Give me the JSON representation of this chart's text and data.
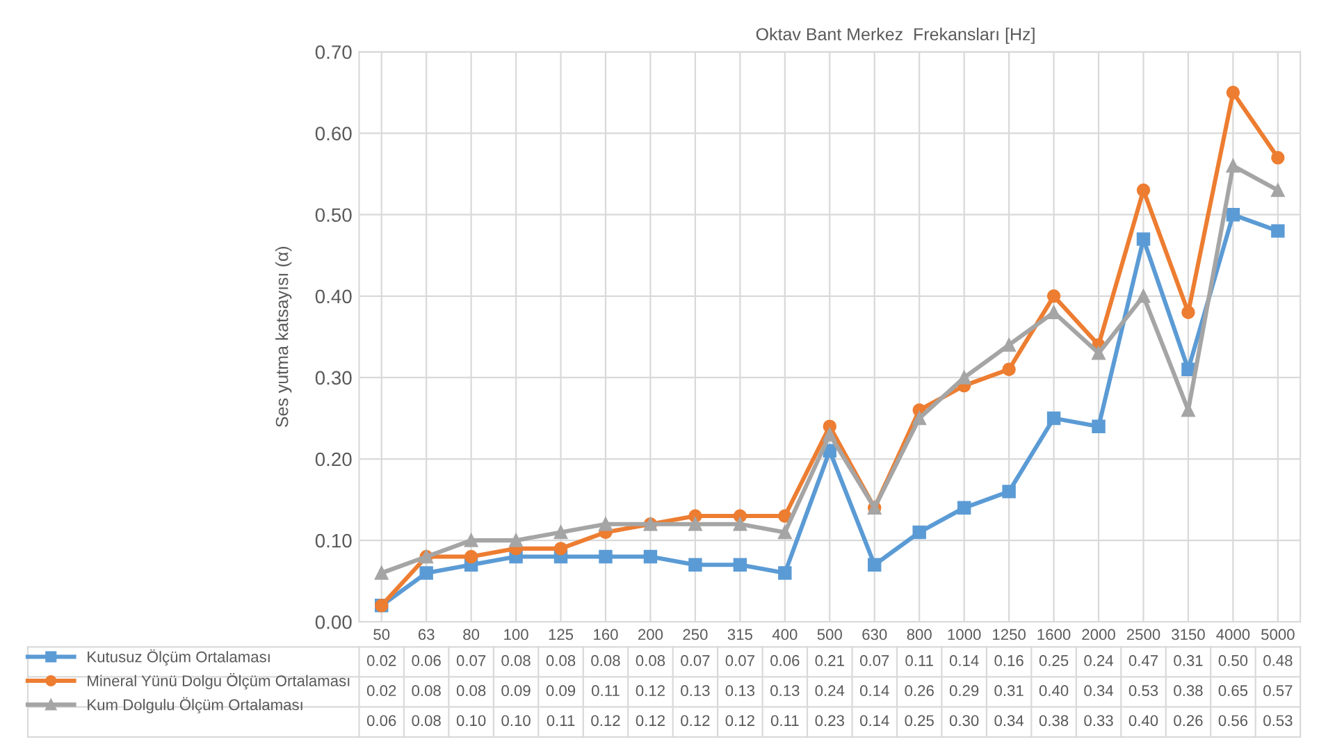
{
  "chart_data": {
    "type": "line",
    "title": "Oktav Bant Merkez  Frekansları [Hz]",
    "ylabel": "Ses yutma katsayısı (α)",
    "categories": [
      "50",
      "63",
      "80",
      "100",
      "125",
      "160",
      "200",
      "250",
      "315",
      "400",
      "500",
      "630",
      "800",
      "1000",
      "1250",
      "1600",
      "2000",
      "2500",
      "3150",
      "4000",
      "5000"
    ],
    "series": [
      {
        "name": "Kutusuz Ölçüm Ortalaması",
        "color": "#5b9bd5",
        "marker": "square",
        "values": [
          0.02,
          0.06,
          0.07,
          0.08,
          0.08,
          0.08,
          0.08,
          0.07,
          0.07,
          0.06,
          0.21,
          0.07,
          0.11,
          0.14,
          0.16,
          0.25,
          0.24,
          0.47,
          0.31,
          0.5,
          0.48
        ],
        "value_labels": [
          "0.02",
          "0.06",
          "0.07",
          "0.08",
          "0.08",
          "0.08",
          "0.08",
          "0.07",
          "0.07",
          "0.06",
          "0.21",
          "0.07",
          "0.11",
          "0.14",
          "0.16",
          "0.25",
          "0.24",
          "0.47",
          "0.31",
          "0.50",
          "0.48"
        ]
      },
      {
        "name": "Mineral Yünü Dolgu Ölçüm Ortalaması",
        "color": "#ed7d31",
        "marker": "circle",
        "values": [
          0.02,
          0.08,
          0.08,
          0.09,
          0.09,
          0.11,
          0.12,
          0.13,
          0.13,
          0.13,
          0.24,
          0.14,
          0.26,
          0.29,
          0.31,
          0.4,
          0.34,
          0.53,
          0.38,
          0.65,
          0.57
        ],
        "value_labels": [
          "0.02",
          "0.08",
          "0.08",
          "0.09",
          "0.09",
          "0.11",
          "0.12",
          "0.13",
          "0.13",
          "0.13",
          "0.24",
          "0.14",
          "0.26",
          "0.29",
          "0.31",
          "0.40",
          "0.34",
          "0.53",
          "0.38",
          "0.65",
          "0.57"
        ]
      },
      {
        "name": "Kum Dolgulu Ölçüm Ortalaması",
        "color": "#a5a5a5",
        "marker": "triangle",
        "values": [
          0.06,
          0.08,
          0.1,
          0.1,
          0.11,
          0.12,
          0.12,
          0.12,
          0.12,
          0.11,
          0.23,
          0.14,
          0.25,
          0.3,
          0.34,
          0.38,
          0.33,
          0.4,
          0.26,
          0.56,
          0.53
        ],
        "value_labels": [
          "0.06",
          "0.08",
          "0.10",
          "0.10",
          "0.11",
          "0.12",
          "0.12",
          "0.12",
          "0.12",
          "0.11",
          "0.23",
          "0.14",
          "0.25",
          "0.30",
          "0.34",
          "0.38",
          "0.33",
          "0.40",
          "0.26",
          "0.56",
          "0.53"
        ]
      }
    ],
    "ylim": [
      0,
      0.7
    ],
    "yticks": [
      {
        "value": 0,
        "label": "0.00"
      },
      {
        "value": 0.1,
        "label": "0.10"
      },
      {
        "value": 0.2,
        "label": "0.20"
      },
      {
        "value": 0.3,
        "label": "0.30"
      },
      {
        "value": 0.4,
        "label": "0.40"
      },
      {
        "value": 0.5,
        "label": "0.50"
      },
      {
        "value": 0.6,
        "label": "0.60"
      },
      {
        "value": 0.7,
        "label": "0.70"
      }
    ],
    "grid": true,
    "legend": "bottom left"
  }
}
